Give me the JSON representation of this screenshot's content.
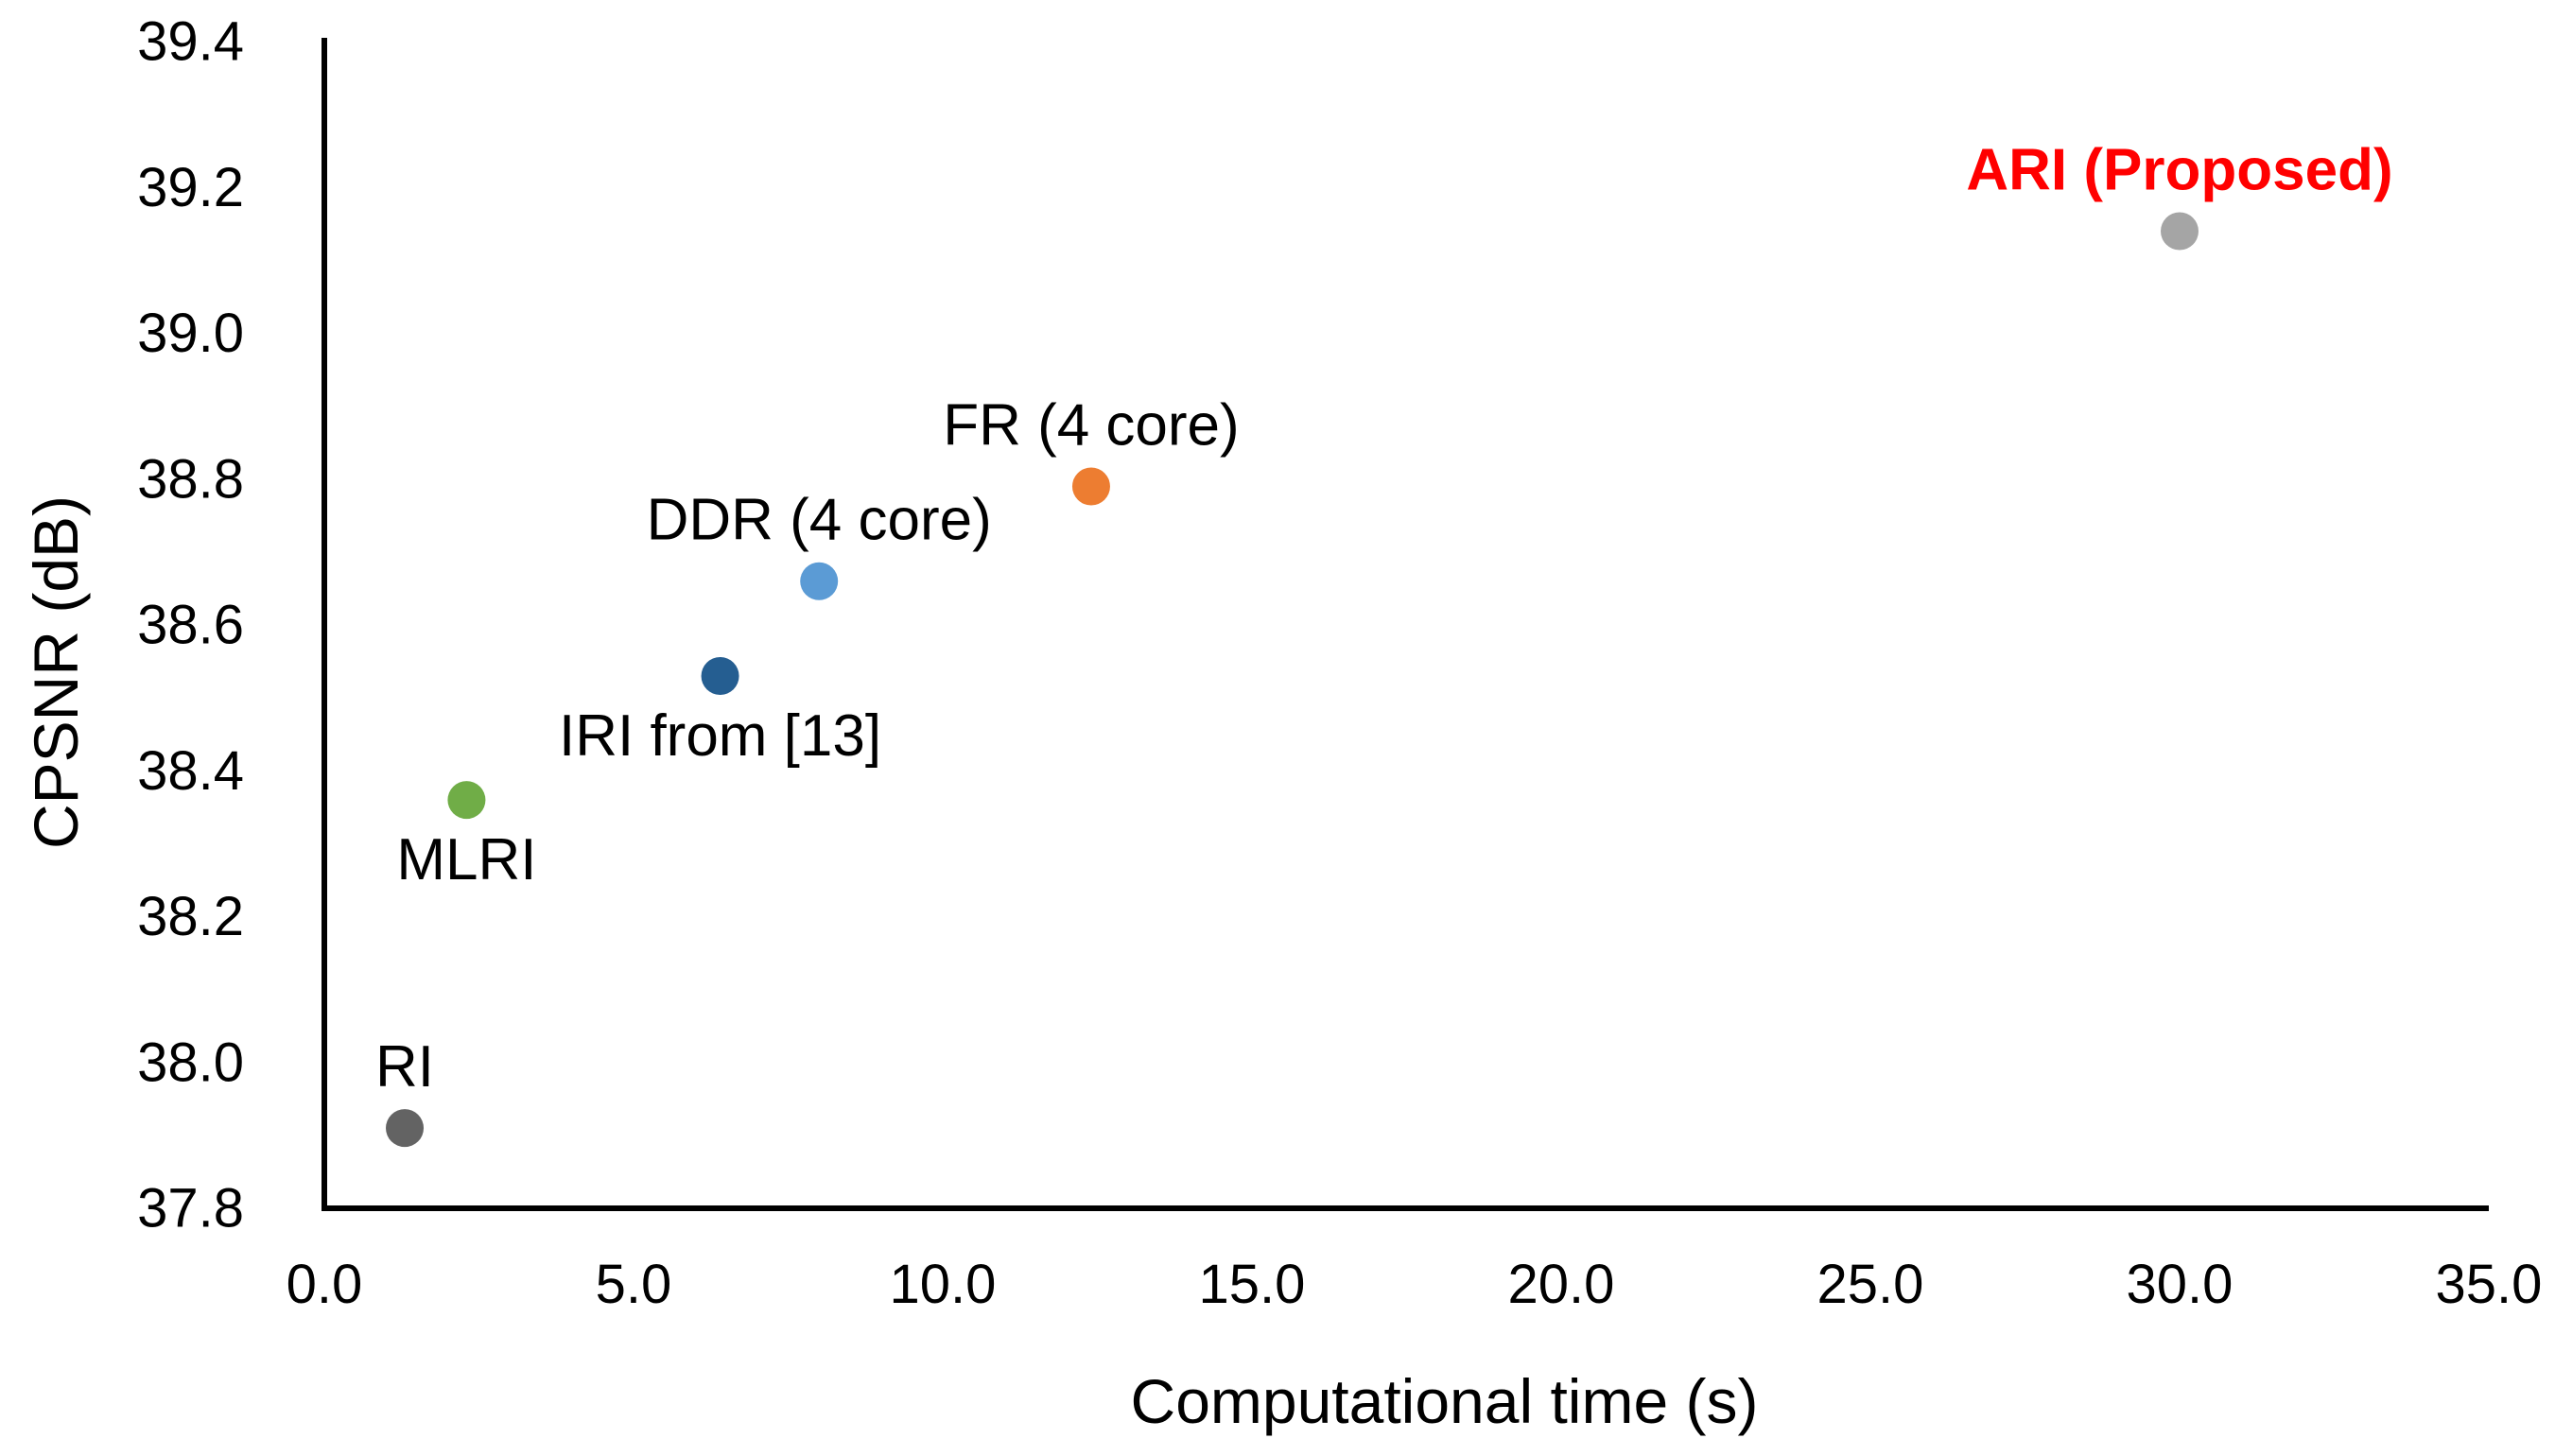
{
  "chart_data": {
    "type": "scatter",
    "title": "",
    "xlabel": "Computational time (s)",
    "ylabel": "CPSNR (dB)",
    "xlim": [
      0.0,
      35.0
    ],
    "ylim": [
      37.8,
      39.4
    ],
    "x_ticks": [
      0.0,
      5.0,
      10.0,
      15.0,
      20.0,
      25.0,
      30.0,
      35.0
    ],
    "x_tick_labels": [
      "0.0",
      "5.0",
      "10.0",
      "15.0",
      "20.0",
      "25.0",
      "30.0",
      "35.0"
    ],
    "y_ticks": [
      37.8,
      38.0,
      38.2,
      38.4,
      38.6,
      38.8,
      39.0,
      39.2,
      39.4
    ],
    "y_tick_labels": [
      "37.8",
      "38.0",
      "38.2",
      "38.4",
      "38.6",
      "38.8",
      "39.0",
      "39.2",
      "39.4"
    ],
    "grid": false,
    "points": [
      {
        "name": "RI",
        "label": "RI",
        "x": 1.3,
        "y": 37.91,
        "color": "#636363",
        "label_pos": "above",
        "label_color": "#000000",
        "highlight": false
      },
      {
        "name": "MLRI",
        "label": "MLRI",
        "x": 2.3,
        "y": 38.36,
        "color": "#70ad47",
        "label_pos": "below",
        "label_color": "#000000",
        "highlight": false
      },
      {
        "name": "IRI",
        "label": "IRI from [13]",
        "x": 6.4,
        "y": 38.53,
        "color": "#255e91",
        "label_pos": "below",
        "label_color": "#000000",
        "highlight": false
      },
      {
        "name": "DDR",
        "label": "DDR (4 core)",
        "x": 8.0,
        "y": 38.66,
        "color": "#5b9bd5",
        "label_pos": "above",
        "label_color": "#000000",
        "highlight": false
      },
      {
        "name": "FR",
        "label": "FR (4 core)",
        "x": 12.4,
        "y": 38.79,
        "color": "#ed7d31",
        "label_pos": "above",
        "label_color": "#000000",
        "highlight": false
      },
      {
        "name": "ARI",
        "label": "ARI (Proposed)",
        "x": 30.0,
        "y": 39.14,
        "color": "#a5a5a5",
        "label_pos": "above",
        "label_color": "#ff0000",
        "highlight": true
      }
    ]
  }
}
